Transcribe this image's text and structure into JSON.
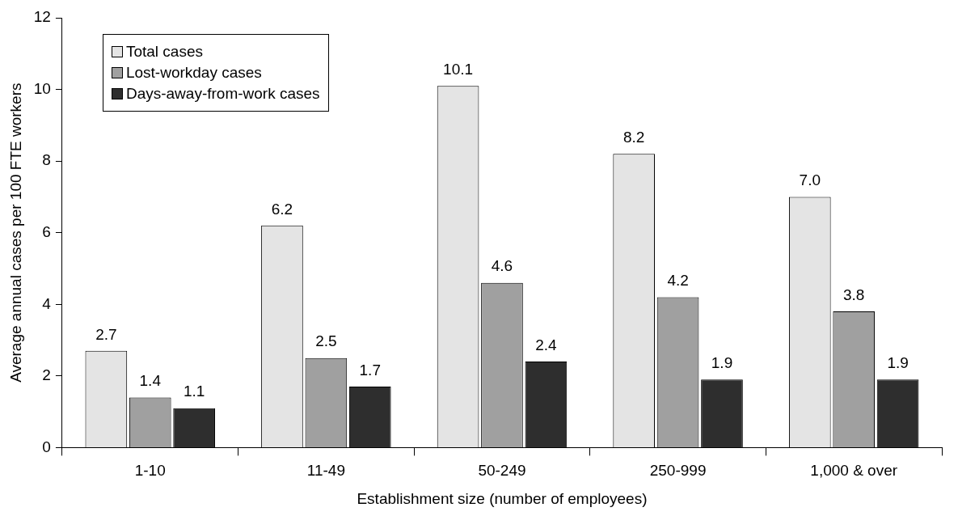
{
  "chart_data": {
    "type": "bar",
    "xlabel": "Establishment size (number of employees)",
    "ylabel": "Average annual cases per 100 FTE workers",
    "categories": [
      "1-10",
      "11-49",
      "50-249",
      "250-999",
      "1,000 & over"
    ],
    "series": [
      {
        "name": "Total cases",
        "color": "#e4e4e4",
        "values": [
          2.7,
          6.2,
          10.1,
          8.2,
          7.0
        ],
        "value_labels": [
          "2.7",
          "6.2",
          "10.1",
          "8.2",
          "7.0"
        ]
      },
      {
        "name": "Lost-workday cases",
        "color": "#a0a0a0",
        "values": [
          1.4,
          2.5,
          4.6,
          4.2,
          3.8
        ],
        "value_labels": [
          "1.4",
          "2.5",
          "4.6",
          "4.2",
          "3.8"
        ]
      },
      {
        "name": "Days-away-from-work cases",
        "color": "#2e2e2e",
        "values": [
          1.1,
          1.7,
          2.4,
          1.9,
          1.9
        ],
        "value_labels": [
          "1.1",
          "1.7",
          "2.4",
          "1.9",
          "1.9"
        ]
      }
    ],
    "ylim": [
      0,
      12
    ],
    "yticks": [
      0,
      2,
      4,
      6,
      8,
      10,
      12
    ],
    "grid": false,
    "legend": "top left"
  }
}
